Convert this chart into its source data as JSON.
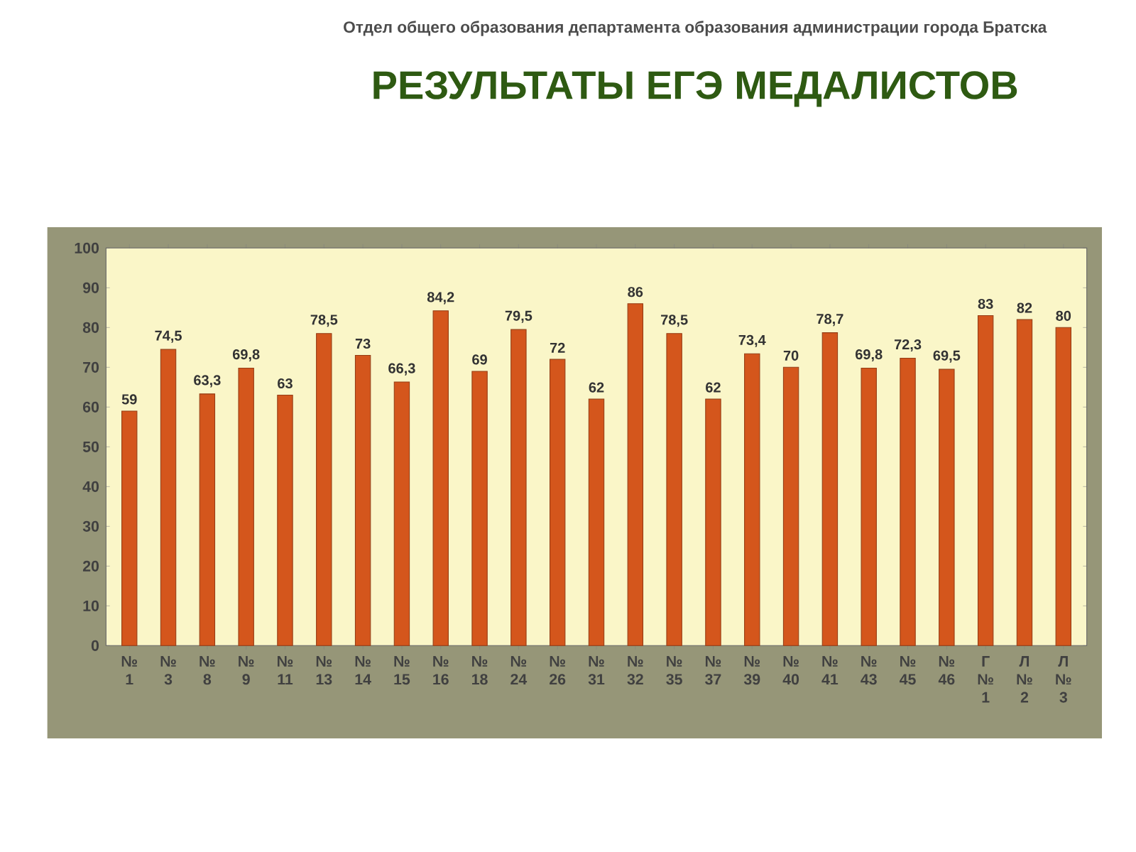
{
  "chart_data": {
    "type": "bar",
    "title": "РЕЗУЛЬТАТЫ ЕГЭ МЕДАЛИСТОВ",
    "subtitle": "Отдел общего образования департамента образования администрации города Братска",
    "categories": [
      "№ 1",
      "№ 3",
      "№ 8",
      "№ 9",
      "№ 11",
      "№ 13",
      "№ 14",
      "№ 15",
      "№ 16",
      "№ 18",
      "№ 24",
      "№ 26",
      "№ 31",
      "№ 32",
      "№ 35",
      "№ 37",
      "№ 39",
      "№ 40",
      "№ 41",
      "№ 43",
      "№ 45",
      "№ 46",
      "Г № 1",
      "Л № 2",
      "Л № 3"
    ],
    "values": [
      59,
      74.5,
      63.3,
      69.8,
      63,
      78.5,
      73,
      66.3,
      84.2,
      69,
      79.5,
      72,
      62,
      86,
      78.5,
      62,
      73.4,
      70,
      78.7,
      69.8,
      72.3,
      69.5,
      83,
      82,
      80
    ],
    "value_labels": [
      "59",
      "74,5",
      "63,3",
      "69,8",
      "63",
      "78,5",
      "73",
      "66,3",
      "84,2",
      "69",
      "79,5",
      "72",
      "62",
      "86",
      "78,5",
      "62",
      "73,4",
      "70",
      "78,7",
      "69,8",
      "72,3",
      "69,5",
      "83",
      "82",
      "80"
    ],
    "color": "#d4561c",
    "ylim": [
      0,
      100
    ],
    "yticks": [
      0,
      10,
      20,
      30,
      40,
      50,
      60,
      70,
      80,
      90,
      100
    ],
    "grid": false
  }
}
